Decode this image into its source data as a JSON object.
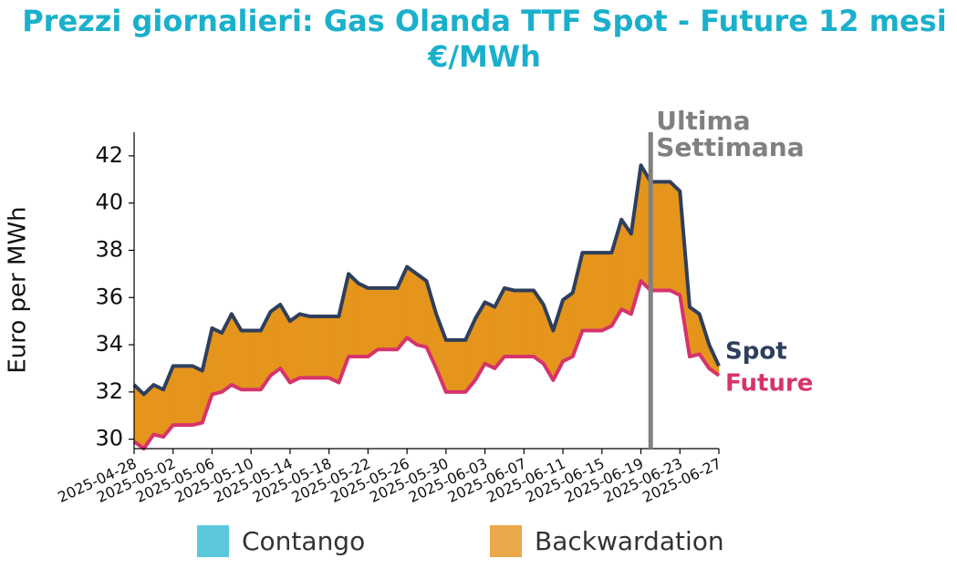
{
  "chart_data": {
    "type": "spread_area",
    "title": "Prezzi giornalieri: Gas Olanda TTF Spot - Future 12 mesi",
    "subtitle": "€/MWh",
    "y_label": "Euro per MWh",
    "x": [
      "2025-04-28",
      "2025-04-29",
      "2025-04-30",
      "2025-05-01",
      "2025-05-02",
      "2025-05-03",
      "2025-05-04",
      "2025-05-05",
      "2025-05-06",
      "2025-05-07",
      "2025-05-08",
      "2025-05-09",
      "2025-05-10",
      "2025-05-11",
      "2025-05-12",
      "2025-05-13",
      "2025-05-14",
      "2025-05-15",
      "2025-05-16",
      "2025-05-17",
      "2025-05-18",
      "2025-05-19",
      "2025-05-20",
      "2025-05-21",
      "2025-05-22",
      "2025-05-23",
      "2025-05-24",
      "2025-05-25",
      "2025-05-26",
      "2025-05-27",
      "2025-05-28",
      "2025-05-29",
      "2025-05-30",
      "2025-05-31",
      "2025-06-01",
      "2025-06-02",
      "2025-06-03",
      "2025-06-04",
      "2025-06-05",
      "2025-06-06",
      "2025-06-07",
      "2025-06-08",
      "2025-06-09",
      "2025-06-10",
      "2025-06-11",
      "2025-06-12",
      "2025-06-13",
      "2025-06-14",
      "2025-06-15",
      "2025-06-16",
      "2025-06-17",
      "2025-06-18",
      "2025-06-19",
      "2025-06-20",
      "2025-06-21",
      "2025-06-22",
      "2025-06-23",
      "2025-06-24",
      "2025-06-25",
      "2025-06-26",
      "2025-06-27"
    ],
    "series": [
      {
        "name": "Spot",
        "color": "#2e3f5c",
        "values": [
          32.3,
          31.9,
          32.3,
          32.1,
          33.1,
          33.1,
          33.1,
          32.9,
          34.7,
          34.5,
          35.3,
          34.6,
          34.6,
          34.6,
          35.4,
          35.7,
          35.0,
          35.3,
          35.2,
          35.2,
          35.2,
          35.2,
          37.0,
          36.6,
          36.4,
          36.4,
          36.4,
          36.4,
          37.3,
          37.0,
          36.7,
          35.3,
          34.2,
          34.2,
          34.2,
          35.1,
          35.8,
          35.6,
          36.4,
          36.3,
          36.3,
          36.3,
          35.7,
          34.6,
          35.9,
          36.2,
          37.9,
          37.9,
          37.9,
          37.9,
          39.3,
          38.7,
          41.6,
          40.9,
          40.9,
          40.9,
          40.5,
          35.6,
          35.3,
          34.0,
          33.1
        ]
      },
      {
        "name": "Future",
        "color": "#d6336c",
        "values": [
          29.9,
          29.6,
          30.2,
          30.1,
          30.6,
          30.6,
          30.6,
          30.7,
          31.9,
          32.0,
          32.3,
          32.1,
          32.1,
          32.1,
          32.7,
          33.0,
          32.4,
          32.6,
          32.6,
          32.6,
          32.6,
          32.4,
          33.5,
          33.5,
          33.5,
          33.8,
          33.8,
          33.8,
          34.3,
          34.0,
          33.9,
          33.0,
          32.0,
          32.0,
          32.0,
          32.5,
          33.2,
          33.0,
          33.5,
          33.5,
          33.5,
          33.5,
          33.2,
          32.5,
          33.3,
          33.5,
          34.6,
          34.6,
          34.6,
          34.8,
          35.5,
          35.3,
          36.7,
          36.3,
          36.3,
          36.3,
          36.1,
          33.5,
          33.6,
          33.0,
          32.7
        ]
      }
    ],
    "fill_legend": [
      {
        "name": "Contango",
        "color": "#5bc8dc",
        "fill": "#5bc8dc"
      },
      {
        "name": "Backwardation",
        "color": "#e9a84a",
        "fill": "#e5951c"
      }
    ],
    "vline": {
      "x": "2025-06-20",
      "color": "#808080",
      "label": [
        "Ultima",
        "Settimana"
      ]
    },
    "xlim": [
      "2025-04-28",
      "2025-06-27"
    ],
    "xticks": [
      "2025-04-28",
      "2025-05-02",
      "2025-05-06",
      "2025-05-10",
      "2025-05-14",
      "2025-05-18",
      "2025-05-22",
      "2025-05-26",
      "2025-05-30",
      "2025-06-03",
      "2025-06-07",
      "2025-06-11",
      "2025-06-15",
      "2025-06-19",
      "2025-06-23",
      "2025-06-27"
    ],
    "ylim": [
      29.6,
      43.0
    ],
    "yticks": [
      30,
      32,
      34,
      36,
      38,
      40,
      42
    ]
  }
}
